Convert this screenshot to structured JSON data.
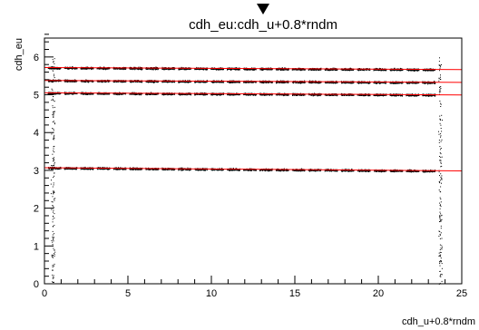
{
  "chart_data": {
    "type": "scatter",
    "title": "cdh_eu:cdh_u+0.8*rndm",
    "xlabel": "cdh_u+0.8*rndm",
    "ylabel": "cdh_eu",
    "xlim": [
      0,
      25
    ],
    "ylim": [
      0,
      6.5
    ],
    "x_ticks": [
      0,
      5,
      10,
      15,
      20,
      25
    ],
    "y_ticks": [
      0,
      1,
      2,
      3,
      4,
      5,
      6
    ],
    "grid": false,
    "marker_color": "#000000",
    "fit_line_color": "#ff0000",
    "band_x_range": [
      0.2,
      23.6
    ],
    "bands": [
      {
        "y_start": 3.07,
        "y_end": 2.99
      },
      {
        "y_start": 5.05,
        "y_end": 5.0
      },
      {
        "y_start": 5.38,
        "y_end": 5.33
      },
      {
        "y_start": 5.72,
        "y_end": 5.67
      }
    ],
    "sparse_columns_x": [
      0.5,
      23.7
    ],
    "title_marker": "triangle-down"
  }
}
